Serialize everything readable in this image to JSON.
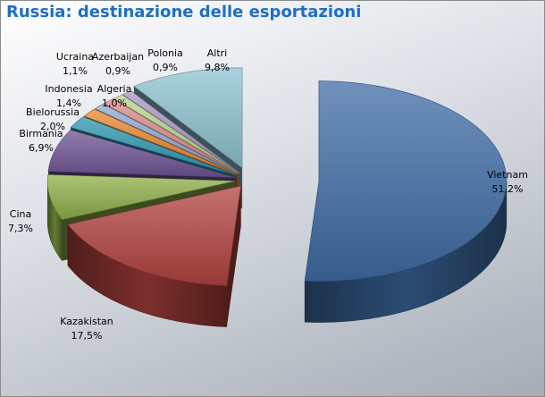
{
  "chart_data": {
    "type": "pie",
    "title": "Russia: destinazione delle esportazioni",
    "three_d": true,
    "exploded": true,
    "slices": [
      {
        "label": "Vietnam",
        "value": 51.2,
        "display": "51,2%",
        "color": "#3f6ca6"
      },
      {
        "label": "Kazakistan",
        "value": 17.5,
        "display": "17,5%",
        "color": "#b2433f"
      },
      {
        "label": "Cina",
        "value": 7.3,
        "display": "7,3%",
        "color": "#8fb04a"
      },
      {
        "label": "Birmania",
        "value": 6.9,
        "display": "6,9%",
        "color": "#6f5494"
      },
      {
        "label": "Bielorussia",
        "value": 2.0,
        "display": "2,0%",
        "color": "#2d97b0"
      },
      {
        "label": "Indonesia",
        "value": 1.4,
        "display": "1,4%",
        "color": "#e8862e"
      },
      {
        "label": "Algeria",
        "value": 1.0,
        "display": "1,0%",
        "color": "#8eaad3"
      },
      {
        "label": "Ucraina",
        "value": 1.1,
        "display": "1,1%",
        "color": "#d88a88"
      },
      {
        "label": "Azerbaijan",
        "value": 0.9,
        "display": "0,9%",
        "color": "#b9d38e"
      },
      {
        "label": "Polonia",
        "value": 0.9,
        "display": "0,9%",
        "color": "#a896c4"
      },
      {
        "label": "Altri",
        "value": 9.8,
        "display": "9,8%",
        "color": "#8ec3d0"
      }
    ]
  }
}
